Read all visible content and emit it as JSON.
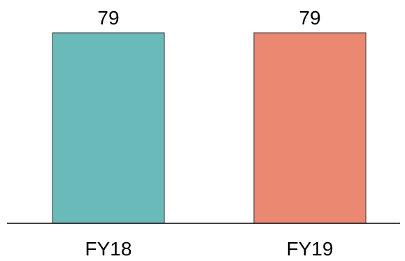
{
  "chart_data": {
    "type": "bar",
    "categories": [
      "FY18",
      "FY19"
    ],
    "values": [
      79,
      79
    ],
    "colors": [
      "#6bbaba",
      "#eb8872"
    ],
    "data_labels": [
      "79",
      "79"
    ],
    "ylim": [
      0,
      79
    ],
    "grid": false,
    "legend": "none"
  }
}
